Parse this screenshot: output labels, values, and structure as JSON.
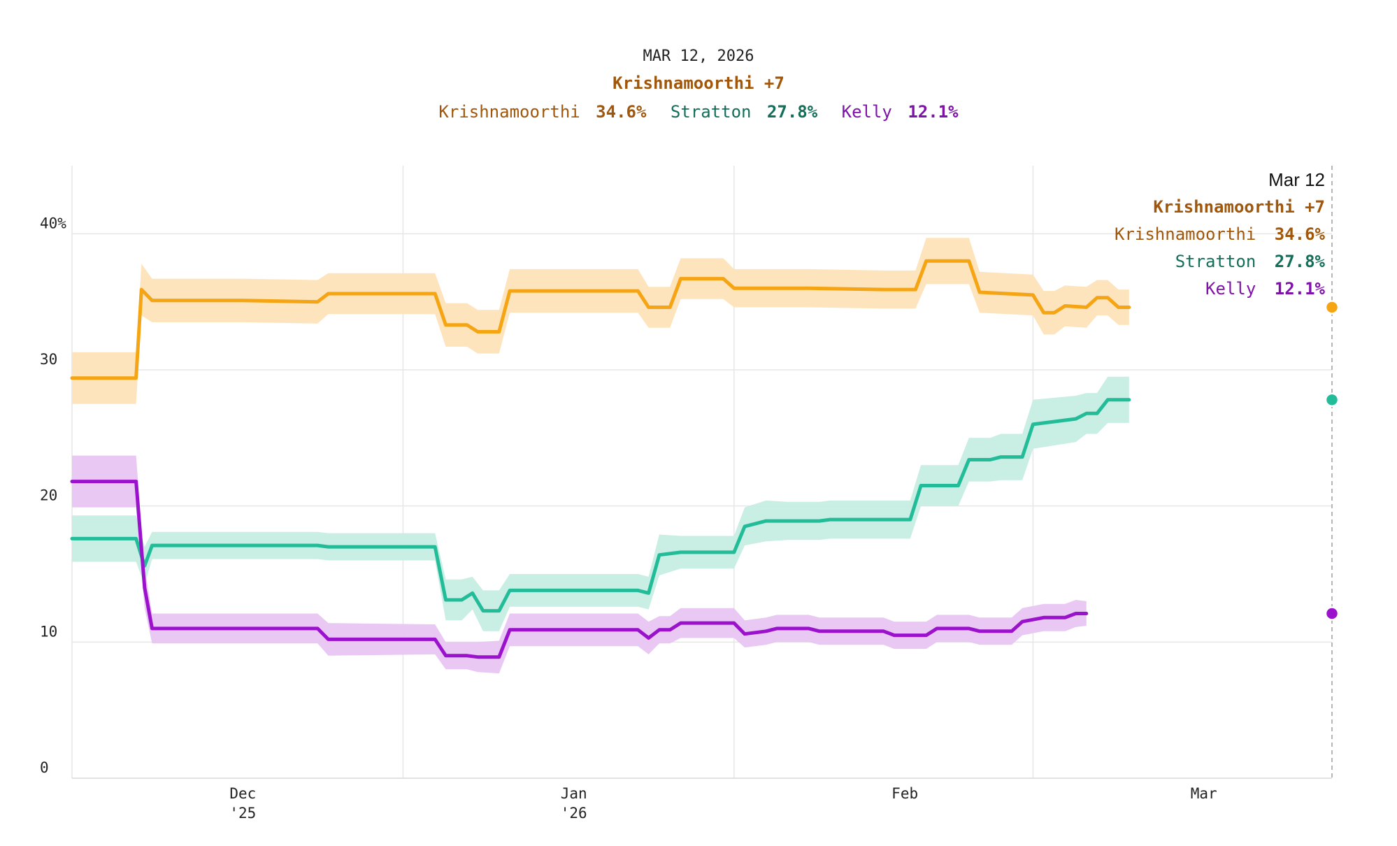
{
  "header": {
    "date": "MAR 12, 2026",
    "leader": "Krishnamoorthi +7",
    "candidates": [
      {
        "name": "Krishnamoorthi",
        "value": "34.6%"
      },
      {
        "name": "Stratton",
        "value": "27.8%"
      },
      {
        "name": "Kelly",
        "value": "12.1%"
      }
    ]
  },
  "tooltip": {
    "date": "Mar 12",
    "leader": "Krishnamoorthi +7",
    "rows": [
      {
        "name": "Krishnamoorthi",
        "value": "34.6%"
      },
      {
        "name": "Stratton",
        "value": "27.8%"
      },
      {
        "name": "Kelly",
        "value": "12.1%"
      }
    ]
  },
  "colors": {
    "Krishnamoorthi": {
      "line": "#f5a413",
      "band": "#fde3b8",
      "text": "#a0570b"
    },
    "Stratton": {
      "line": "#22bc99",
      "band": "#c6ede3",
      "text": "#136e5a"
    },
    "Kelly": {
      "line": "#9b12cd",
      "band": "#e8c6f2",
      "text": "#7f12a8"
    },
    "grid": "#e6e6e6"
  },
  "chart_data": {
    "type": "line",
    "title": "Krishnamoorthi +7",
    "xlabel": "",
    "ylabel": "",
    "ylim": [
      0,
      45
    ],
    "x_range_days": [
      -16,
      102
    ],
    "y_ticks": [
      {
        "value": 0,
        "label": "0"
      },
      {
        "value": 10,
        "label": "10"
      },
      {
        "value": 20,
        "label": "20"
      },
      {
        "value": 30,
        "label": "30"
      },
      {
        "value": 40,
        "label": "40%"
      }
    ],
    "x_ticks": [
      {
        "day": 0,
        "label": "Dec",
        "sublabel": "'25"
      },
      {
        "day": 31,
        "label": "Jan",
        "sublabel": "'26"
      },
      {
        "day": 62,
        "label": "Feb",
        "sublabel": ""
      },
      {
        "day": 90,
        "label": "Mar",
        "sublabel": ""
      }
    ],
    "x_gridlines_days": [
      -16,
      15,
      46,
      74
    ],
    "series": [
      {
        "name": "Krishnamoorthi",
        "end_value": 34.6,
        "points": [
          [
            -16,
            29.4,
            1.9
          ],
          [
            -10,
            29.4,
            1.9
          ],
          [
            -9.5,
            35.9,
            1.9
          ],
          [
            -8.5,
            35.1,
            1.6
          ],
          [
            0,
            35.1,
            1.6
          ],
          [
            7,
            35.0,
            1.6
          ],
          [
            8,
            35.6,
            1.5
          ],
          [
            18,
            35.6,
            1.5
          ],
          [
            19,
            33.3,
            1.6
          ],
          [
            21,
            33.3,
            1.6
          ],
          [
            22,
            32.8,
            1.6
          ],
          [
            24,
            32.8,
            1.6
          ],
          [
            25,
            35.8,
            1.6
          ],
          [
            37,
            35.8,
            1.6
          ],
          [
            38,
            34.6,
            1.5
          ],
          [
            40,
            34.6,
            1.5
          ],
          [
            41,
            36.7,
            1.5
          ],
          [
            45,
            36.7,
            1.5
          ],
          [
            46,
            36.0,
            1.4
          ],
          [
            53,
            36.0,
            1.4
          ],
          [
            60,
            35.9,
            1.4
          ],
          [
            63,
            35.9,
            1.4
          ],
          [
            64,
            38.0,
            1.7
          ],
          [
            68,
            38.0,
            1.7
          ],
          [
            69,
            35.7,
            1.5
          ],
          [
            74,
            35.5,
            1.5
          ],
          [
            75,
            34.2,
            1.6
          ],
          [
            76,
            34.2,
            1.6
          ],
          [
            77,
            34.7,
            1.5
          ],
          [
            79,
            34.6,
            1.5
          ],
          [
            80,
            35.3,
            1.3
          ],
          [
            81,
            35.3,
            1.3
          ],
          [
            82,
            34.6,
            1.3
          ],
          [
            83,
            34.6,
            1.3
          ]
        ]
      },
      {
        "name": "Stratton",
        "end_value": 27.8,
        "points": [
          [
            -16,
            17.6,
            1.7
          ],
          [
            -10,
            17.6,
            1.7
          ],
          [
            -9.2,
            15.6,
            1.4
          ],
          [
            -8.5,
            17.1,
            1.0
          ],
          [
            0,
            17.1,
            1.0
          ],
          [
            7,
            17.1,
            1.0
          ],
          [
            8,
            17.0,
            1.0
          ],
          [
            18,
            17.0,
            1.0
          ],
          [
            19,
            13.1,
            1.5
          ],
          [
            20.5,
            13.1,
            1.5
          ],
          [
            21.5,
            13.6,
            1.2
          ],
          [
            22.5,
            12.3,
            1.5
          ],
          [
            24,
            12.3,
            1.5
          ],
          [
            25,
            13.8,
            1.2
          ],
          [
            37,
            13.8,
            1.2
          ],
          [
            38,
            13.6,
            1.2
          ],
          [
            39,
            16.4,
            1.5
          ],
          [
            41,
            16.6,
            1.2
          ],
          [
            46,
            16.6,
            1.2
          ],
          [
            47,
            18.5,
            1.4
          ],
          [
            49,
            18.9,
            1.5
          ],
          [
            51,
            18.9,
            1.4
          ],
          [
            54,
            18.9,
            1.4
          ],
          [
            55,
            19.0,
            1.4
          ],
          [
            62.5,
            19.0,
            1.4
          ],
          [
            63.5,
            21.5,
            1.5
          ],
          [
            67,
            21.5,
            1.5
          ],
          [
            68,
            23.4,
            1.6
          ],
          [
            70,
            23.4,
            1.6
          ],
          [
            71,
            23.6,
            1.7
          ],
          [
            73,
            23.6,
            1.7
          ],
          [
            74,
            26.0,
            1.8
          ],
          [
            78,
            26.4,
            1.7
          ],
          [
            79,
            26.8,
            1.5
          ],
          [
            80,
            26.8,
            1.5
          ],
          [
            81,
            27.8,
            1.7
          ],
          [
            83,
            27.8,
            1.7
          ]
        ]
      },
      {
        "name": "Kelly",
        "end_value": 12.1,
        "points": [
          [
            -16,
            21.8,
            1.9
          ],
          [
            -10,
            21.8,
            1.9
          ],
          [
            -9.2,
            14.0,
            1.5
          ],
          [
            -8.5,
            11.0,
            1.1
          ],
          [
            0,
            11.0,
            1.1
          ],
          [
            7,
            11.0,
            1.1
          ],
          [
            8,
            10.2,
            1.2
          ],
          [
            18,
            10.2,
            1.1
          ],
          [
            19,
            9.0,
            1.0
          ],
          [
            21,
            9.0,
            1.0
          ],
          [
            22,
            8.9,
            1.1
          ],
          [
            24,
            8.9,
            1.2
          ],
          [
            25,
            10.9,
            1.2
          ],
          [
            37,
            10.9,
            1.2
          ],
          [
            38,
            10.3,
            1.2
          ],
          [
            39,
            10.9,
            1.0
          ],
          [
            40,
            10.9,
            1.0
          ],
          [
            41,
            11.4,
            1.1
          ],
          [
            46,
            11.4,
            1.1
          ],
          [
            47,
            10.6,
            1.0
          ],
          [
            49,
            10.8,
            1.0
          ],
          [
            50,
            11.0,
            1.0
          ],
          [
            53,
            11.0,
            1.0
          ],
          [
            54,
            10.8,
            1.0
          ],
          [
            58,
            10.8,
            1.0
          ],
          [
            60,
            10.8,
            1.0
          ],
          [
            61,
            10.5,
            1.0
          ],
          [
            64,
            10.5,
            1.0
          ],
          [
            65,
            11.0,
            1.0
          ],
          [
            68,
            11.0,
            1.0
          ],
          [
            69,
            10.8,
            1.0
          ],
          [
            72,
            10.8,
            1.0
          ],
          [
            73,
            11.5,
            1.0
          ],
          [
            75,
            11.8,
            1.0
          ],
          [
            77,
            11.8,
            1.0
          ],
          [
            78,
            12.1,
            1.0
          ],
          [
            79,
            12.1,
            0.9
          ]
        ]
      }
    ]
  }
}
